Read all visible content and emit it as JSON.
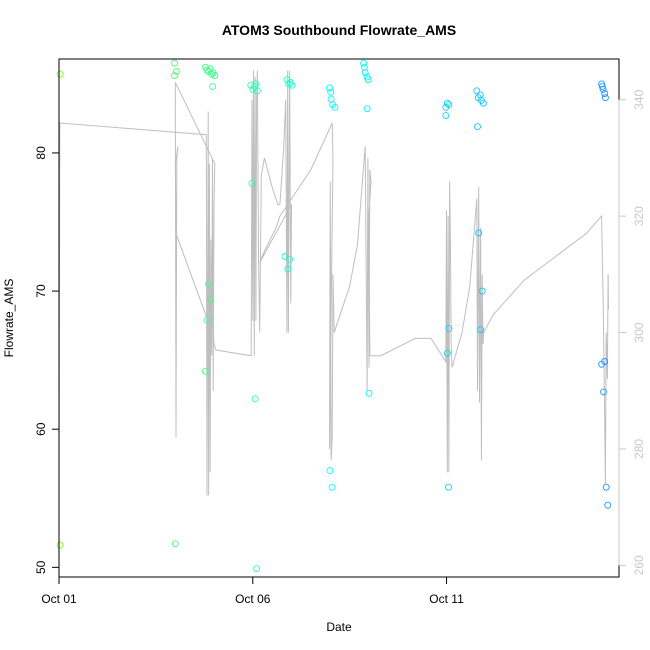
{
  "chart_data": {
    "type": "scatter",
    "title": "ATOM3 Southbound Flowrate_AMS",
    "xlabel": "Date",
    "ylabel": "Flowrate_AMS",
    "xlim": [
      0.0,
      14.45
    ],
    "ylim": [
      49.3,
      86.8
    ],
    "y2lim": [
      258,
      347
    ],
    "x_ticks": [
      {
        "v": 0,
        "label": "Oct 01"
      },
      {
        "v": 5,
        "label": "Oct 06"
      },
      {
        "v": 10,
        "label": "Oct 11"
      }
    ],
    "y_ticks": [
      50,
      60,
      70,
      80
    ],
    "y2_ticks": [
      260,
      280,
      300,
      320,
      340
    ],
    "colors": {
      "points_start": "#7fff00",
      "points_end": "#1e90ff",
      "line": "#bebebe",
      "right_axis": "#c8c8c8"
    },
    "series": [
      {
        "values": [
          [
            0.03,
            85.7
          ],
          [
            0.03,
            51.6
          ],
          [
            2.98,
            86.5
          ],
          [
            2.98,
            85.6
          ],
          [
            3.03,
            85.9
          ],
          [
            3.0,
            51.7
          ],
          [
            3.78,
            86.2
          ],
          [
            3.82,
            86.0
          ],
          [
            3.86,
            85.9
          ],
          [
            3.9,
            86.1
          ],
          [
            3.94,
            85.7
          ],
          [
            3.98,
            85.8
          ],
          [
            4.02,
            85.6
          ],
          [
            3.96,
            84.8
          ],
          [
            3.78,
            64.2
          ],
          [
            3.82,
            67.9
          ],
          [
            3.86,
            70.5
          ],
          [
            3.9,
            69.4
          ],
          [
            4.95,
            84.9
          ],
          [
            5.0,
            84.6
          ],
          [
            5.04,
            84.8
          ],
          [
            5.08,
            85.0
          ],
          [
            5.12,
            84.5
          ],
          [
            4.98,
            77.8
          ],
          [
            5.06,
            62.2
          ],
          [
            5.1,
            49.9
          ],
          [
            5.88,
            85.3
          ],
          [
            5.93,
            85.0
          ],
          [
            5.97,
            85.1
          ],
          [
            6.01,
            84.9
          ],
          [
            5.83,
            72.5
          ],
          [
            5.9,
            71.6
          ],
          [
            5.95,
            72.3
          ],
          [
            6.98,
            84.7
          ],
          [
            7.01,
            84.4
          ],
          [
            7.02,
            83.9
          ],
          [
            7.06,
            83.5
          ],
          [
            7.12,
            83.3
          ],
          [
            6.99,
            57.0
          ],
          [
            7.05,
            55.8
          ],
          [
            7.86,
            86.5
          ],
          [
            7.88,
            86.2
          ],
          [
            7.9,
            85.8
          ],
          [
            7.95,
            85.5
          ],
          [
            7.98,
            85.3
          ],
          [
            7.95,
            83.2
          ],
          [
            8.0,
            62.6
          ],
          [
            9.98,
            83.3
          ],
          [
            10.02,
            83.6
          ],
          [
            10.06,
            83.5
          ],
          [
            9.98,
            82.7
          ],
          [
            10.02,
            65.5
          ],
          [
            10.06,
            67.3
          ],
          [
            10.05,
            55.8
          ],
          [
            10.78,
            84.5
          ],
          [
            10.82,
            84.0
          ],
          [
            10.87,
            84.2
          ],
          [
            10.9,
            83.8
          ],
          [
            10.95,
            83.6
          ],
          [
            10.8,
            81.9
          ],
          [
            10.83,
            74.2
          ],
          [
            10.92,
            70.0
          ],
          [
            10.88,
            67.2
          ],
          [
            14.0,
            85.0
          ],
          [
            14.02,
            84.8
          ],
          [
            14.04,
            84.6
          ],
          [
            14.08,
            84.3
          ],
          [
            14.1,
            84.0
          ],
          [
            14.0,
            64.7
          ],
          [
            14.08,
            64.9
          ],
          [
            14.05,
            62.7
          ],
          [
            14.12,
            55.8
          ],
          [
            14.16,
            54.5
          ]
        ]
      },
      {
        "axis": "right",
        "type": "line",
        "values": [
          [
            0.0,
            278
          ],
          [
            0.02,
            336
          ],
          [
            3.8,
            334
          ],
          [
            3.82,
            272
          ],
          [
            3.85,
            338
          ],
          [
            3.86,
            272
          ],
          [
            3.88,
            329
          ],
          [
            3.9,
            276
          ],
          [
            3.92,
            316
          ],
          [
            3.94,
            296
          ],
          [
            3.96,
            330
          ],
          [
            3.98,
            290
          ],
          [
            4.0,
            322
          ],
          [
            4.02,
            329
          ],
          [
            3.0,
            343
          ],
          [
            3.02,
            282
          ],
          [
            3.04,
            330
          ],
          [
            3.07,
            332
          ],
          [
            3.0,
            329
          ],
          [
            3.02,
            317
          ],
          [
            3.9,
            301
          ],
          [
            3.95,
            303
          ],
          [
            4.0,
            298
          ],
          [
            4.05,
            297
          ],
          [
            4.96,
            296
          ],
          [
            4.98,
            340
          ],
          [
            5.0,
            302
          ],
          [
            5.02,
            345
          ],
          [
            5.04,
            296
          ],
          [
            5.06,
            344
          ],
          [
            5.08,
            302
          ],
          [
            5.1,
            340
          ],
          [
            5.12,
            345
          ],
          [
            5.15,
            312
          ],
          [
            5.18,
            300
          ],
          [
            5.22,
            327
          ],
          [
            5.3,
            330
          ],
          [
            5.5,
            325
          ],
          [
            5.65,
            322
          ],
          [
            5.7,
            322
          ],
          [
            5.8,
            332
          ],
          [
            5.85,
            340
          ],
          [
            5.88,
            300
          ],
          [
            5.9,
            345
          ],
          [
            5.92,
            300
          ],
          [
            5.95,
            345
          ],
          [
            5.98,
            305
          ],
          [
            6.0,
            322
          ],
          [
            5.18,
            312
          ],
          [
            5.3,
            314
          ],
          [
            5.6,
            318
          ],
          [
            5.7,
            320
          ],
          [
            5.9,
            322
          ],
          [
            6.5,
            328
          ],
          [
            7.05,
            336
          ],
          [
            7.07,
            330
          ],
          [
            6.98,
            280
          ],
          [
            7.0,
            326
          ],
          [
            7.02,
            278
          ],
          [
            7.05,
            282
          ],
          [
            7.07,
            310
          ],
          [
            7.1,
            300
          ],
          [
            7.15,
            301
          ],
          [
            7.3,
            304
          ],
          [
            7.5,
            308
          ],
          [
            7.7,
            315
          ],
          [
            7.9,
            332
          ],
          [
            7.95,
            290
          ],
          [
            7.97,
            330
          ],
          [
            8.0,
            294
          ],
          [
            8.02,
            328
          ],
          [
            8.05,
            326
          ],
          [
            8.0,
            320
          ],
          [
            8.02,
            296
          ],
          [
            8.1,
            296
          ],
          [
            8.3,
            296
          ],
          [
            8.6,
            297
          ],
          [
            8.9,
            298
          ],
          [
            9.2,
            299
          ],
          [
            9.6,
            299
          ],
          [
            9.98,
            295
          ],
          [
            10.0,
            321
          ],
          [
            10.02,
            276
          ],
          [
            10.04,
            320
          ],
          [
            10.06,
            276
          ],
          [
            10.08,
            326
          ],
          [
            10.1,
            316
          ],
          [
            10.12,
            298
          ],
          [
            10.14,
            294
          ],
          [
            10.4,
            300
          ],
          [
            10.6,
            308
          ],
          [
            10.78,
            323
          ],
          [
            10.8,
            290
          ],
          [
            10.83,
            325
          ],
          [
            10.85,
            288
          ],
          [
            10.88,
            318
          ],
          [
            10.9,
            278
          ],
          [
            10.92,
            310
          ],
          [
            10.94,
            298
          ],
          [
            10.96,
            300
          ],
          [
            11.2,
            303
          ],
          [
            11.6,
            306
          ],
          [
            12.0,
            309
          ],
          [
            12.4,
            311
          ],
          [
            12.8,
            313
          ],
          [
            13.2,
            315
          ],
          [
            13.6,
            317
          ],
          [
            14.0,
            320
          ],
          [
            14.02,
            313
          ],
          [
            14.04,
            306
          ],
          [
            14.06,
            296
          ],
          [
            14.08,
            285
          ],
          [
            14.1,
            274
          ],
          [
            14.12,
            300
          ],
          [
            14.15,
            292
          ],
          [
            14.17,
            310
          ],
          [
            14.18,
            304
          ]
        ]
      }
    ]
  }
}
